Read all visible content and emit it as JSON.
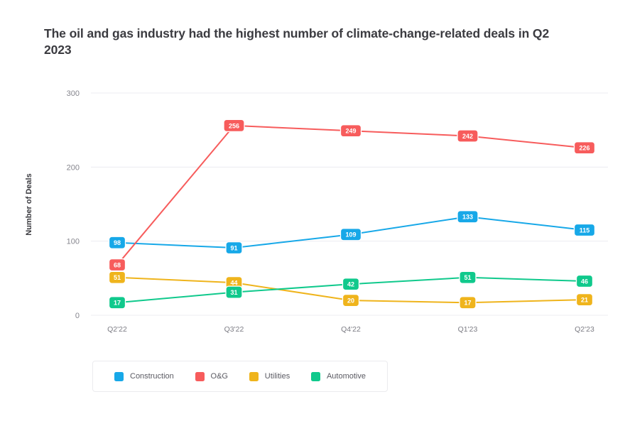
{
  "title": "The oil and gas industry had the highest number of climate-change-related deals in Q2 2023",
  "chart_data": {
    "type": "line",
    "categories": [
      "Q2'22",
      "Q3'22",
      "Q4'22",
      "Q1'23",
      "Q2'23"
    ],
    "series": [
      {
        "name": "Construction",
        "color": "#17a8e8",
        "values": [
          98,
          91,
          109,
          133,
          115
        ]
      },
      {
        "name": "O&G",
        "color": "#f75c5c",
        "values": [
          68,
          256,
          249,
          242,
          226
        ]
      },
      {
        "name": "Utilities",
        "color": "#efb41c",
        "values": [
          51,
          44,
          20,
          17,
          21
        ]
      },
      {
        "name": "Automotive",
        "color": "#10c98c",
        "values": [
          17,
          31,
          42,
          51,
          46
        ]
      }
    ],
    "xlabel": "",
    "ylabel": "Number of Deals",
    "ylim": [
      0,
      300
    ],
    "yticks": [
      0,
      100,
      200,
      300
    ],
    "grid": true,
    "legend_position": "bottom",
    "data_labels": true
  }
}
